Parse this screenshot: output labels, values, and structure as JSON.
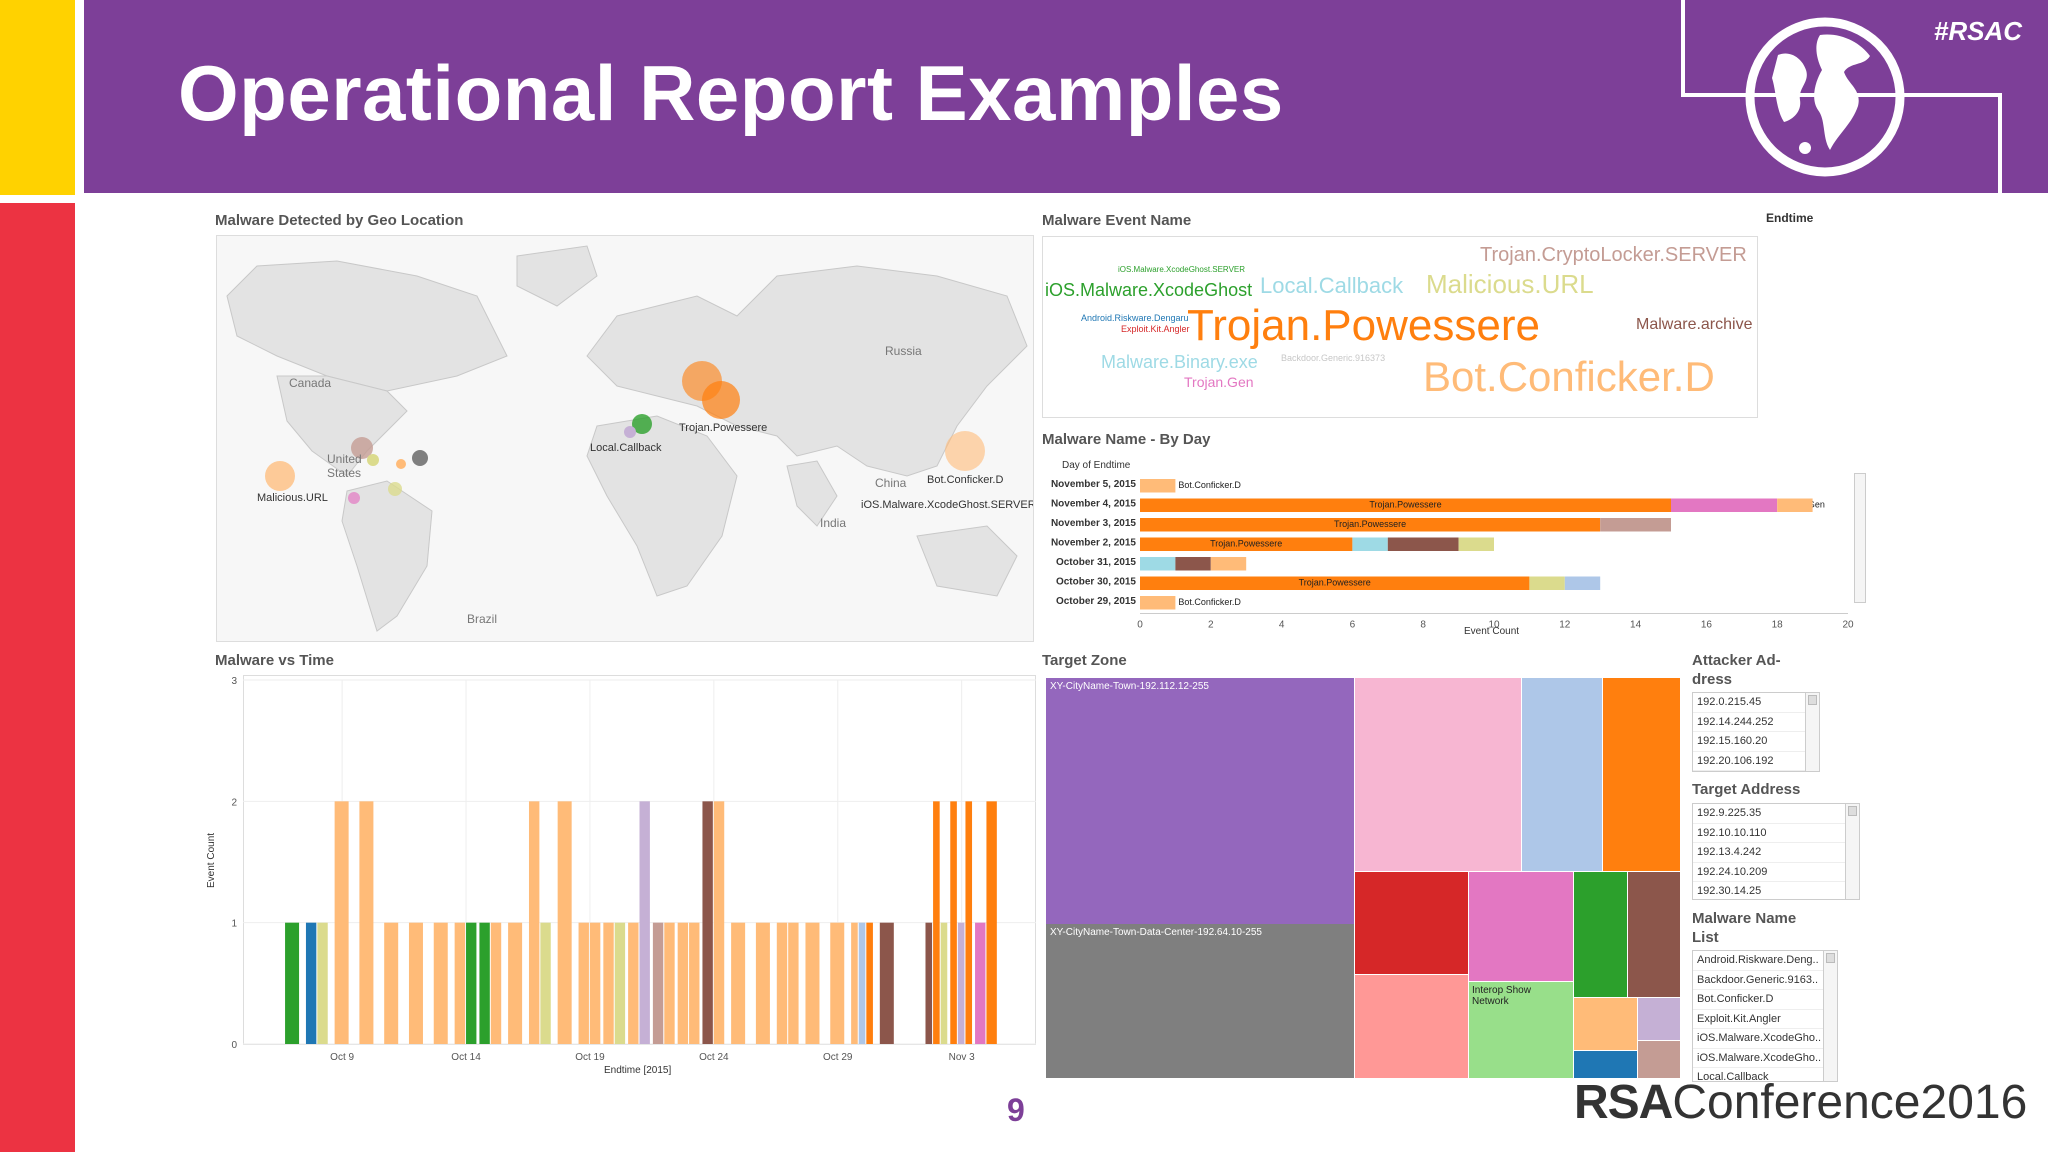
{
  "slide": {
    "title": "Operational Report Examples",
    "hashtag": "#RSAC",
    "page_number": "9",
    "logo_rsa": "RSA",
    "logo_conference": "Conference2016"
  },
  "colors": {
    "purple": "#7d3f98",
    "yellow": "#ffd200",
    "red": "#ec3342",
    "orange": "#ff7f0e",
    "light_orange": "#ffbb78"
  },
  "geo_panel": {
    "title": "Malware Detected by Geo Location",
    "map_labels": [
      "Canada",
      "Russia",
      "United States",
      "China",
      "India",
      "Brazil"
    ],
    "annotations": [
      "Malicious.URL",
      "Local.Callback",
      "Trojan.Powessere",
      "Bot.Conficker.D",
      "iOS.Malware.XcodeGhost.SERVER"
    ]
  },
  "word_cloud": {
    "title": "Malware Event Name",
    "filter_label": "Endtime",
    "words": [
      {
        "text": "iOS.Malware.XcodeGhost.SERVER",
        "color": "#2ca02c"
      },
      {
        "text": "iOS.Malware.XcodeGhost",
        "color": "#2ca02c"
      },
      {
        "text": "Local.Callback",
        "color": "#9edae5"
      },
      {
        "text": "Malicious.URL",
        "color": "#dbdb8d"
      },
      {
        "text": "Trojan.CryptoLocker.SERVER",
        "color": "#c49c94"
      },
      {
        "text": "Android.Riskware.Dengaru",
        "color": "#1f77b4"
      },
      {
        "text": "Exploit.Kit.Angler",
        "color": "#d62728"
      },
      {
        "text": "Trojan.Powessere",
        "color": "#ff7f0e"
      },
      {
        "text": "Malware.archive",
        "color": "#8c564b"
      },
      {
        "text": "Malware.Binary.exe",
        "color": "#9edae5"
      },
      {
        "text": "Backdoor.Generic.916373",
        "color": "#c7c7c7"
      },
      {
        "text": "Trojan.Gen",
        "color": "#e377c2"
      },
      {
        "text": "Bot.Conficker.D",
        "color": "#ffbb78"
      }
    ]
  },
  "by_day": {
    "title": "Malware Name - By Day",
    "dim_header": "Day of Endtime",
    "x_title": "Event Count"
  },
  "time_chart": {
    "title": "Malware vs Time",
    "y_title": "Event Count",
    "x_title": "Endtime [2015]"
  },
  "target_zone": {
    "title": "Target Zone",
    "labels": [
      "XY-CityName-Town-192.112.12-255",
      "XY-CityName-Town-Data-Center-192.64.10-255",
      "Interop Show Network"
    ]
  },
  "filters": {
    "attacker": {
      "title": "Attacker Ad-dress",
      "items": [
        "192.0.215.45",
        "192.14.244.252",
        "192.15.160.20",
        "192.20.106.192"
      ]
    },
    "target": {
      "title": "Target Address",
      "items": [
        "192.9.225.35",
        "192.10.10.110",
        "192.13.4.242",
        "192.24.10.209",
        "192.30.14.25"
      ]
    },
    "malware": {
      "title": "Malware Name List",
      "items": [
        "Android.Riskware.Deng..",
        "Backdoor.Generic.9163..",
        "Bot.Conficker.D",
        "Exploit.Kit.Angler",
        "iOS.Malware.XcodeGho..",
        "iOS.Malware.XcodeGho..",
        "Local.Callback"
      ]
    }
  },
  "chart_data": [
    {
      "type": "bar",
      "orientation": "horizontal",
      "title": "Malware Name - By Day",
      "categories": [
        "November 5, 2015",
        "November 4, 2015",
        "November 3, 2015",
        "November 2, 2015",
        "October 31, 2015",
        "October 30, 2015",
        "October 29, 2015"
      ],
      "xlabel": "Event Count",
      "ylabel": "Day of Endtime",
      "xlim": [
        0,
        20
      ],
      "xticks": [
        "0",
        "2",
        "4",
        "6",
        "8",
        "10",
        "12",
        "14",
        "16",
        "18",
        "20"
      ],
      "stacks": [
        [
          {
            "value": 1,
            "color": "#ffbb78",
            "label": "Bot.Conficker.D"
          }
        ],
        [
          {
            "value": 15,
            "color": "#ff7f0e",
            "label": "Trojan.Powessere"
          },
          {
            "value": 3,
            "color": "#e377c2",
            "label": "Trojan.Gen"
          },
          {
            "value": 1,
            "color": "#ffbb78"
          }
        ],
        [
          {
            "value": 13,
            "color": "#ff7f0e",
            "label": "Trojan.Powessere"
          },
          {
            "value": 2,
            "color": "#c49c94"
          }
        ],
        [
          {
            "value": 6,
            "color": "#ff7f0e",
            "label": "Trojan.Powessere"
          },
          {
            "value": 1,
            "color": "#9edae5"
          },
          {
            "value": 2,
            "color": "#8c564b"
          },
          {
            "value": 1,
            "color": "#dbdb8d"
          }
        ],
        [
          {
            "value": 1,
            "color": "#9edae5"
          },
          {
            "value": 1,
            "color": "#8c564b"
          },
          {
            "value": 1,
            "color": "#ffbb78"
          }
        ],
        [
          {
            "value": 11,
            "color": "#ff7f0e",
            "label": "Trojan.Powessere"
          },
          {
            "value": 1,
            "color": "#dbdb8d"
          },
          {
            "value": 1,
            "color": "#aec7e8"
          }
        ],
        [
          {
            "value": 1,
            "color": "#ffbb78",
            "label": "Bot.Conficker.D"
          }
        ]
      ]
    },
    {
      "type": "bar",
      "title": "Malware vs Time",
      "xlabel": "Endtime [2015]",
      "ylabel": "Event Count",
      "ylim": [
        0,
        3
      ],
      "yticks": [
        "0",
        "1",
        "2",
        "3"
      ],
      "xticks": [
        "Oct 9",
        "Oct 14",
        "Oct 19",
        "Oct 24",
        "Oct 29",
        "Nov 3"
      ],
      "day_range": [
        "Oct 5",
        "Nov 6"
      ],
      "days": [
        {
          "date": "Oct 7",
          "values": [
            1
          ],
          "colors": [
            "#2ca02c"
          ]
        },
        {
          "date": "Oct 8",
          "values": [
            1,
            1
          ],
          "colors": [
            "#1f77b4",
            "#dbdb8d"
          ]
        },
        {
          "date": "Oct 9",
          "values": [
            2
          ],
          "colors": [
            "#ffbb78"
          ]
        },
        {
          "date": "Oct 10",
          "values": [
            2
          ],
          "colors": [
            "#ffbb78"
          ]
        },
        {
          "date": "Oct 11",
          "values": [
            1
          ],
          "colors": [
            "#ffbb78"
          ]
        },
        {
          "date": "Oct 12",
          "values": [
            1
          ],
          "colors": [
            "#ffbb78"
          ]
        },
        {
          "date": "Oct 13",
          "values": [
            1
          ],
          "colors": [
            "#ffbb78"
          ]
        },
        {
          "date": "Oct 14",
          "values": [
            1,
            1
          ],
          "colors": [
            "#ffbb78",
            "#2ca02c"
          ]
        },
        {
          "date": "Oct 15",
          "values": [
            1,
            1
          ],
          "colors": [
            "#2ca02c",
            "#ffbb78"
          ]
        },
        {
          "date": "Oct 16",
          "values": [
            1
          ],
          "colors": [
            "#ffbb78"
          ]
        },
        {
          "date": "Oct 17",
          "values": [
            2,
            1
          ],
          "colors": [
            "#ffbb78",
            "#dbdb8d"
          ]
        },
        {
          "date": "Oct 18",
          "values": [
            2
          ],
          "colors": [
            "#ffbb78"
          ]
        },
        {
          "date": "Oct 19",
          "values": [
            1,
            1
          ],
          "colors": [
            "#ffbb78",
            "#ffbb78"
          ]
        },
        {
          "date": "Oct 20",
          "values": [
            1,
            1
          ],
          "colors": [
            "#ffbb78",
            "#dbdb8d"
          ]
        },
        {
          "date": "Oct 21",
          "values": [
            1,
            2
          ],
          "colors": [
            "#ffbb78",
            "#c5b0d5"
          ]
        },
        {
          "date": "Oct 22",
          "values": [
            1,
            1
          ],
          "colors": [
            "#c49c94",
            "#ffbb78"
          ]
        },
        {
          "date": "Oct 23",
          "values": [
            1,
            1
          ],
          "colors": [
            "#ffbb78",
            "#ffbb78"
          ]
        },
        {
          "date": "Oct 24",
          "values": [
            2,
            2
          ],
          "colors": [
            "#8c564b",
            "#ffbb78"
          ]
        },
        {
          "date": "Oct 25",
          "values": [
            1
          ],
          "colors": [
            "#ffbb78"
          ]
        },
        {
          "date": "Oct 26",
          "values": [
            1
          ],
          "colors": [
            "#ffbb78"
          ]
        },
        {
          "date": "Oct 27",
          "values": [
            1,
            1
          ],
          "colors": [
            "#ffbb78",
            "#ffbb78"
          ]
        },
        {
          "date": "Oct 28",
          "values": [
            1
          ],
          "colors": [
            "#ffbb78"
          ]
        },
        {
          "date": "Oct 29",
          "values": [
            1
          ],
          "colors": [
            "#ffbb78"
          ]
        },
        {
          "date": "Oct 30",
          "values": [
            1,
            1,
            1
          ],
          "colors": [
            "#ffbb78",
            "#aec7e8",
            "#ff7f0e"
          ]
        },
        {
          "date": "Oct 31",
          "values": [
            1
          ],
          "colors": [
            "#8c564b"
          ]
        },
        {
          "date": "Nov 2",
          "values": [
            1,
            2,
            1
          ],
          "colors": [
            "#8c564b",
            "#ff7f0e",
            "#dbdb8d"
          ]
        },
        {
          "date": "Nov 3",
          "values": [
            2,
            1,
            2
          ],
          "colors": [
            "#ff7f0e",
            "#c5b0d5",
            "#ff7f0e"
          ]
        },
        {
          "date": "Nov 4",
          "values": [
            1,
            2
          ],
          "colors": [
            "#e377c2",
            "#ff7f0e"
          ]
        }
      ]
    }
  ]
}
